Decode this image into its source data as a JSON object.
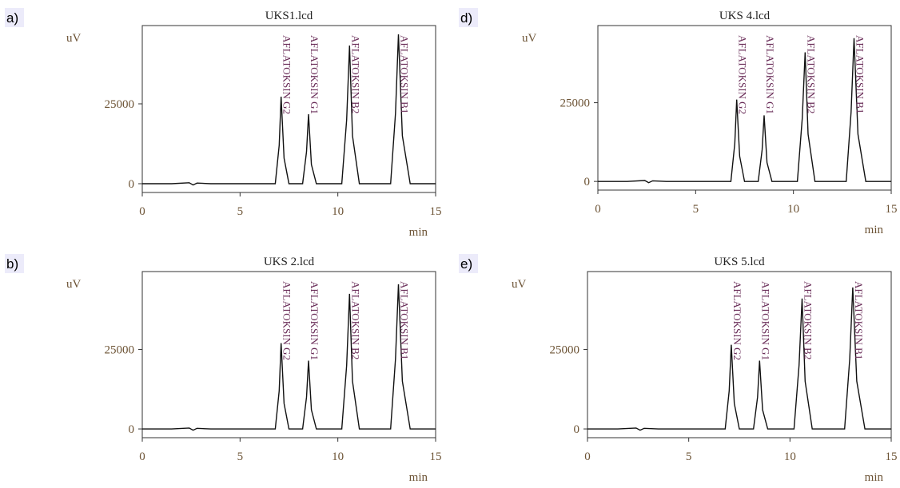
{
  "chart_data": [
    {
      "type": "line",
      "panel_label": "a)",
      "title": "UKS1.lcd",
      "y_label": "uV",
      "x_label": "min",
      "xlim": [
        0,
        15
      ],
      "ylim": [
        -2750,
        49500
      ],
      "xticks": [
        0,
        5,
        10,
        15
      ],
      "yticks": [
        0,
        25000
      ],
      "color": "#111111",
      "x": [
        0,
        1.5,
        2.4,
        2.6,
        2.8,
        3.5,
        6.8,
        7.0,
        7.1,
        7.25,
        7.5,
        8.2,
        8.4,
        8.5,
        8.65,
        8.9,
        10.2,
        10.45,
        10.6,
        10.75,
        11.1,
        12.7,
        12.95,
        13.1,
        13.3,
        13.7,
        15
      ],
      "values": [
        0,
        0,
        300,
        -400,
        200,
        0,
        0,
        12000,
        27250,
        8000,
        0,
        0,
        10000,
        21750,
        6000,
        0,
        0,
        20000,
        43250,
        15000,
        0,
        0,
        22000,
        46750,
        15000,
        0,
        0
      ],
      "peaks": [
        {
          "label": "AFLATOKSIN G2",
          "x": 7.1
        },
        {
          "label": "AFLATOKSIN G1",
          "x": 8.5
        },
        {
          "label": "AFLATOKSIN B2",
          "x": 10.6
        },
        {
          "label": "AFLATOKSIN B1",
          "x": 13.1
        }
      ]
    },
    {
      "type": "line",
      "panel_label": "d)",
      "title": "UKS 4.lcd",
      "y_label": "uV",
      "x_label": "min",
      "xlim": [
        0,
        15
      ],
      "ylim": [
        -2750,
        49500
      ],
      "xticks": [
        0,
        5,
        10,
        15
      ],
      "yticks": [
        0,
        25000
      ],
      "color": "#111111",
      "x": [
        0,
        1.5,
        2.4,
        2.6,
        2.8,
        3.5,
        6.8,
        7.0,
        7.1,
        7.25,
        7.5,
        8.2,
        8.4,
        8.5,
        8.65,
        8.9,
        10.2,
        10.45,
        10.6,
        10.75,
        11.1,
        12.7,
        12.95,
        13.1,
        13.3,
        13.7,
        15
      ],
      "values": [
        0,
        0,
        300,
        -400,
        200,
        0,
        0,
        12000,
        26000,
        8000,
        0,
        0,
        10000,
        21000,
        6000,
        0,
        0,
        20000,
        41000,
        15000,
        0,
        0,
        22000,
        45500,
        15000,
        0,
        0
      ],
      "peaks": [
        {
          "label": "AFLATOKSIN G2",
          "x": 7.1
        },
        {
          "label": "AFLATOKSIN G1",
          "x": 8.5
        },
        {
          "label": "AFLATOKSIN B2",
          "x": 10.6
        },
        {
          "label": "AFLATOKSIN B1",
          "x": 13.1
        }
      ]
    },
    {
      "type": "line",
      "panel_label": "b)",
      "title": "UKS 2.lcd",
      "y_label": "uV",
      "x_label": "min",
      "xlim": [
        0,
        15
      ],
      "ylim": [
        -2750,
        49500
      ],
      "xticks": [
        0,
        5,
        10,
        15
      ],
      "yticks": [
        0,
        25000
      ],
      "color": "#111111",
      "x": [
        0,
        1.5,
        2.4,
        2.6,
        2.8,
        3.5,
        6.8,
        7.0,
        7.1,
        7.25,
        7.5,
        8.2,
        8.4,
        8.5,
        8.65,
        8.9,
        10.2,
        10.45,
        10.6,
        10.75,
        11.1,
        12.7,
        12.95,
        13.1,
        13.3,
        13.7,
        15
      ],
      "values": [
        0,
        0,
        300,
        -400,
        200,
        0,
        0,
        12000,
        27000,
        8000,
        0,
        0,
        10000,
        21500,
        6000,
        0,
        0,
        20000,
        42500,
        15000,
        0,
        0,
        22000,
        45500,
        15000,
        0,
        0
      ],
      "peaks": [
        {
          "label": "AFLATOKSIN G2",
          "x": 7.1
        },
        {
          "label": "AFLATOKSIN G1",
          "x": 8.5
        },
        {
          "label": "AFLATOKSIN B2",
          "x": 10.6
        },
        {
          "label": "AFLATOKSIN B1",
          "x": 13.1
        }
      ]
    },
    {
      "type": "line",
      "panel_label": "e)",
      "title": "UKS 5.lcd",
      "y_label": "uV",
      "x_label": "min",
      "xlim": [
        0,
        15
      ],
      "ylim": [
        -2750,
        49500
      ],
      "xticks": [
        0,
        5,
        10,
        15
      ],
      "yticks": [
        0,
        25000
      ],
      "color": "#111111",
      "x": [
        0,
        1.5,
        2.4,
        2.6,
        2.8,
        3.5,
        6.8,
        7.0,
        7.1,
        7.25,
        7.5,
        8.2,
        8.4,
        8.5,
        8.65,
        8.9,
        10.2,
        10.45,
        10.6,
        10.75,
        11.1,
        12.7,
        12.95,
        13.1,
        13.3,
        13.7,
        15
      ],
      "values": [
        0,
        0,
        300,
        -400,
        200,
        0,
        0,
        12000,
        26500,
        8000,
        0,
        0,
        10000,
        21500,
        6000,
        0,
        0,
        20000,
        41000,
        15000,
        0,
        0,
        22000,
        44500,
        15000,
        0,
        0
      ],
      "peaks": [
        {
          "label": "AFLATOKSIN G2",
          "x": 7.1
        },
        {
          "label": "AFLATOKSIN G1",
          "x": 8.5
        },
        {
          "label": "AFLATOKSIN B2",
          "x": 10.6
        },
        {
          "label": "AFLATOKSIN B1",
          "x": 13.1
        }
      ]
    }
  ]
}
